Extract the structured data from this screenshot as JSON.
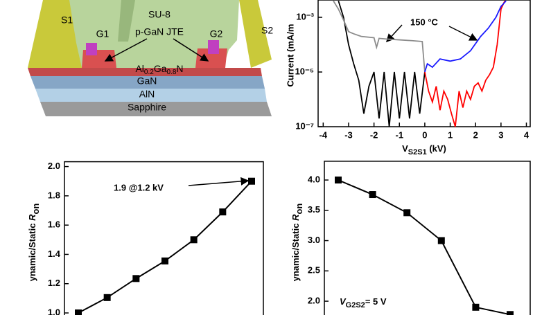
{
  "schematic": {
    "s1": "S1",
    "s2": "S2",
    "g1": "G1",
    "g2": "G2",
    "su8": "SU-8",
    "jte": "p-GaN JTE",
    "algan": [
      "Al",
      "0.2",
      "Ga",
      "0.8",
      "N"
    ],
    "gan": "GaN",
    "aln": "AlN",
    "sapphire": "Sapphire"
  },
  "chart_data": [
    {
      "type": "line",
      "log_y": true,
      "ylabel": "Current (mA/m",
      "xlabel": [
        "V",
        "S2S1",
        " (kV)"
      ],
      "annotation": "150 °C",
      "xlim": [
        -4.2,
        4.15
      ],
      "xticks": [
        -4,
        -3,
        -2,
        -1,
        0,
        1,
        2,
        3,
        4
      ],
      "ylim": [
        1e-07,
        0.0043
      ],
      "yticks": [
        {
          "value": 0.001,
          "label": "10⁻³"
        },
        {
          "value": 1e-05,
          "label": "10⁻⁵"
        },
        {
          "value": 1e-07,
          "label": "10⁻⁷"
        }
      ],
      "series": [
        {
          "color": "#000000",
          "x": [
            -3.4,
            -3.2,
            -3.0,
            -2.8,
            -2.6,
            -2.4,
            -2.2,
            -2.0,
            -1.8,
            -1.6,
            -1.4,
            -1.2,
            -1.0,
            -0.8,
            -0.6,
            -0.4,
            -0.2,
            0
          ],
          "values": [
            0.004,
            0.001,
            0.0001,
            2e-05,
            5e-06,
            3e-07,
            3e-06,
            1e-05,
            2e-07,
            1e-05,
            1e-07,
            1e-05,
            2e-07,
            1e-05,
            2e-07,
            1e-05,
            3e-07,
            1e-05
          ]
        },
        {
          "color": "#ff0000",
          "x": [
            0,
            0.15,
            0.3,
            0.45,
            0.6,
            0.75,
            0.9,
            1.05,
            1.2,
            1.35,
            1.5,
            1.65,
            1.8,
            1.95,
            2.1,
            2.25,
            2.4,
            2.55,
            2.7,
            2.85,
            3.0,
            3.15
          ],
          "values": [
            1e-05,
            2e-06,
            8e-07,
            3e-06,
            4e-07,
            2e-06,
            1e-06,
            3e-07,
            1e-07,
            2e-06,
            5e-07,
            2e-06,
            1e-06,
            3e-06,
            4e-06,
            2e-06,
            5e-06,
            8e-06,
            1.5e-05,
            0.0001,
            0.002,
            0.004
          ]
        },
        {
          "color": "#8c8c8c",
          "x": [
            -3.6,
            -3.4,
            -3.2,
            -3.0,
            -2.8,
            -2.5,
            -2.0,
            -1.9,
            -1.8,
            -1.5,
            -1.0,
            -0.5,
            -0.1,
            0
          ],
          "values": [
            0.004,
            0.002,
            0.0008,
            0.0003,
            0.00025,
            0.0002,
            0.00018,
            8e-05,
            0.00017,
            0.00016,
            0.00015,
            0.00014,
            0.00013,
            1e-05
          ]
        },
        {
          "color": "#1a1aff",
          "x": [
            0,
            0.1,
            0.3,
            0.6,
            1.0,
            1.4,
            1.8,
            2.2,
            2.5,
            2.8,
            3.0,
            3.2
          ],
          "values": [
            1e-05,
            2e-05,
            1.5e-05,
            3e-05,
            2.5e-05,
            3e-05,
            6e-05,
            0.0002,
            0.0004,
            0.001,
            0.0025,
            0.004
          ]
        }
      ]
    },
    {
      "type": "line",
      "ylabel": [
        "ynamic/Static ",
        "R",
        "on"
      ],
      "annotation": "1.9 @1.2 kV",
      "categories": [
        null,
        null,
        null,
        null,
        null,
        null,
        null
      ],
      "values": [
        1.0,
        1.105,
        1.235,
        1.355,
        1.5,
        1.69,
        1.9
      ],
      "color": "#000000",
      "ylim": [
        0.95,
        2.033
      ],
      "yticks": [
        {
          "value": 1,
          "label": "1.0"
        },
        1.2,
        1.4,
        1.6,
        1.8,
        {
          "value": 2,
          "label": "2.0"
        }
      ]
    },
    {
      "type": "line",
      "ylabel": [
        "ynamic/Static ",
        "R",
        "on"
      ],
      "annotation": [
        "V",
        "G2S2",
        "= 5 V"
      ],
      "categories": [
        null,
        null,
        null,
        null,
        null,
        null
      ],
      "values": [
        4.0,
        3.76,
        3.46,
        3.0,
        1.9,
        1.78
      ],
      "color": "#000000",
      "ylim": [
        1.7,
        4.31
      ],
      "yticks": [
        {
          "value": 2,
          "label": "2.0"
        },
        2.5,
        {
          "value": 3,
          "label": "3.0"
        },
        3.5,
        {
          "value": 4,
          "label": "4.0"
        }
      ]
    }
  ]
}
